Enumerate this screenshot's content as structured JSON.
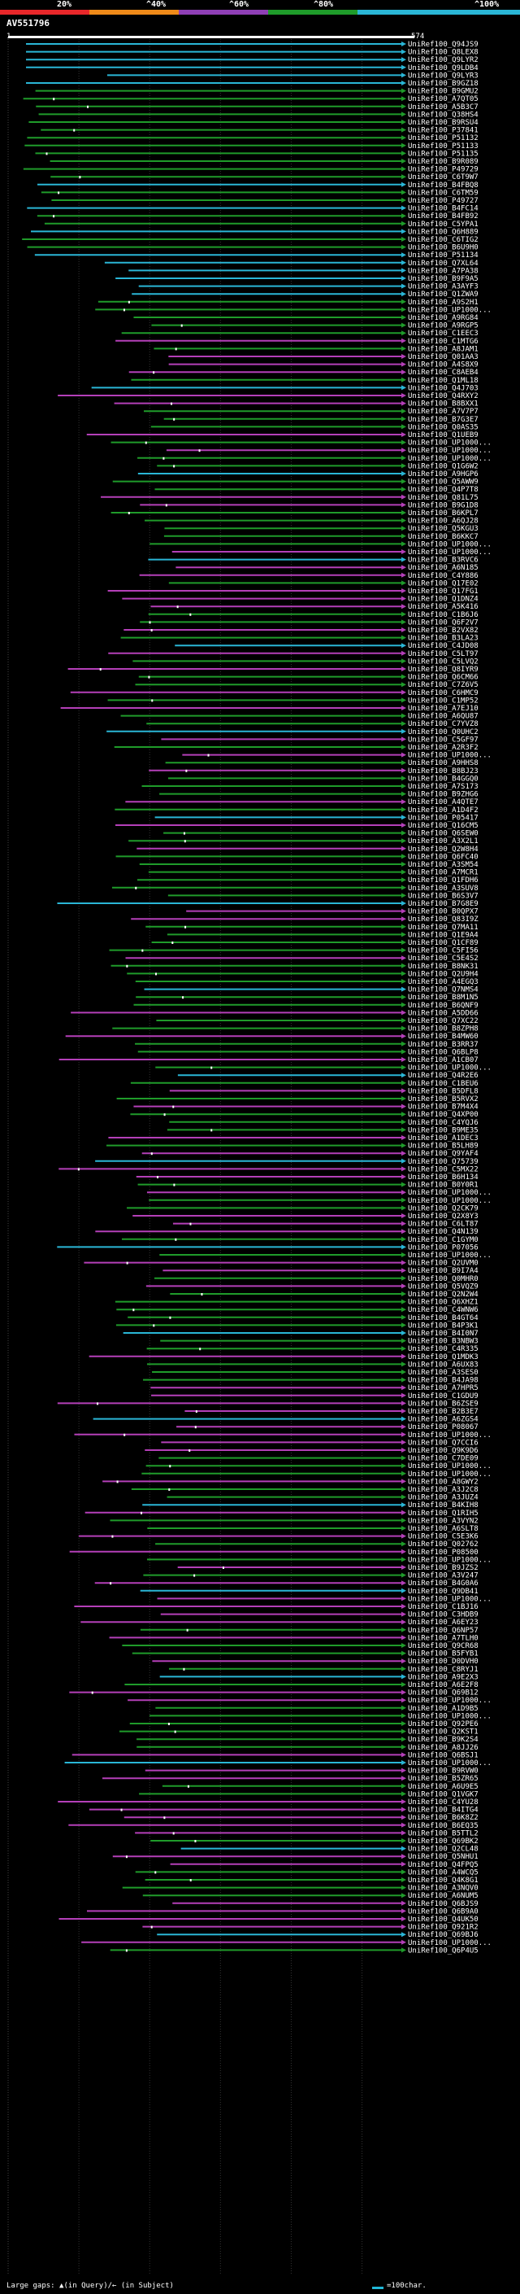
{
  "scale": {
    "labels": [
      "20%",
      "^40%",
      "^60%",
      "^80%",
      "^100%"
    ],
    "colors": [
      "#e8272a",
      "#ef8a19",
      "#8f3fb5",
      "#1f9b2a",
      "#2ab6d6"
    ]
  },
  "query": {
    "name": "AV551796",
    "start": "1",
    "end": "574"
  },
  "footer": "Large gaps: ▲(in Query)/← (in Subject)",
  "legend": "=100char.",
  "hits": [
    "UniRef100_Q94JS9",
    "UniRef100_Q8LEX8",
    "UniRef100_Q9LYR2",
    "UniRef100_Q9LDB4",
    "UniRef100_Q9LYR3",
    "UniRef100_B9GZ18",
    "UniRef100_B9GMU2",
    "UniRef100_A7QT05",
    "UniRef100_A5B3C7",
    "UniRef100_Q38HS4",
    "UniRef100_B9RSU4",
    "UniRef100_P37841",
    "UniRef100_P51132",
    "UniRef100_P51133",
    "UniRef100_P51135",
    "UniRef100_B9R089",
    "UniRef100_P49729",
    "UniRef100_C6T9W7",
    "UniRef100_B4FBQ8",
    "UniRef100_C6TM59",
    "UniRef100_P49727",
    "UniRef100_B4FC14",
    "UniRef100_B4FB92",
    "UniRef100_C5YPA1",
    "UniRef100_Q6H889",
    "UniRef100_C6TIG2",
    "UniRef100_B6U9H0",
    "UniRef100_P51134",
    "UniRef100_Q7XL64",
    "UniRef100_A7PA38",
    "UniRef100_B9F9A5",
    "UniRef100_A3AYF3",
    "UniRef100_Q1ZWA9",
    "UniRef100_A9S2H1",
    "UniRef100_UP1000...",
    "UniRef100_A9RG84",
    "UniRef100_A9RGP5",
    "UniRef100_C1EEC3",
    "UniRef100_C1MTG6",
    "UniRef100_A8JAM1",
    "UniRef100_Q01AA3",
    "UniRef100_A4S8X9",
    "UniRef100_C8AEB4",
    "UniRef100_Q1ML18",
    "UniRef100_Q4J703",
    "UniRef100_Q4RXY2",
    "UniRef100_B8BXX1",
    "UniRef100_A7V7P7",
    "UniRef100_B7G3E7",
    "UniRef100_Q0AS35",
    "UniRef100_Q1UEB9",
    "UniRef100_UP1000...",
    "UniRef100_UP1000...",
    "UniRef100_UP1000...",
    "UniRef100_Q1G6W2",
    "UniRef100_A9HGP6",
    "UniRef100_Q5AWW9",
    "UniRef100_Q4P7T8",
    "UniRef100_Q81L75",
    "UniRef100_B9G1D8",
    "UniRef100_B6KPL7",
    "UniRef100_A6QJ28",
    "UniRef100_Q5KGU3",
    "UniRef100_B6KKC7",
    "UniRef100_UP1000...",
    "UniRef100_UP1000...",
    "UniRef100_B3RVC6",
    "UniRef100_A6N185",
    "UniRef100_C4Y886",
    "UniRef100_Q17E02",
    "UniRef100_Q17FG1",
    "UniRef100_Q1DNZ4",
    "UniRef100_A5K416",
    "UniRef100_C1B6J6",
    "UniRef100_Q6F2V7",
    "UniRef100_B2VX82",
    "UniRef100_B3LA23",
    "UniRef100_C4JD08",
    "UniRef100_C5LT97",
    "UniRef100_C5LVQ2",
    "UniRef100_Q8IYR9",
    "UniRef100_Q6CM66",
    "UniRef100_C7Z6V5",
    "UniRef100_C6HMC9",
    "UniRef100_C1MP52",
    "UniRef100_A7EJ10",
    "UniRef100_A6QU87",
    "UniRef100_C7YVZ8",
    "UniRef100_Q0UHC2",
    "UniRef100_C5GF97",
    "UniRef100_A2R3F2",
    "UniRef100_UP1000...",
    "UniRef100_A9HHS8",
    "UniRef100_B8BJ23",
    "UniRef100_B4GGQ0",
    "UniRef100_A7S173",
    "UniRef100_B9ZHG6",
    "UniRef100_A4QTE7",
    "UniRef100_A1D4F2",
    "UniRef100_P05417",
    "UniRef100_Q16CM5",
    "UniRef100_Q6SEW0",
    "UniRef100_A3X2L1",
    "UniRef100_Q2W8H4",
    "UniRef100_Q6FC40",
    "UniRef100_A3SM54",
    "UniRef100_A7MCR1",
    "UniRef100_Q1FDH6",
    "UniRef100_A3SUV8",
    "UniRef100_B6S3V7",
    "UniRef100_B7G8E9",
    "UniRef100_B0QPX7",
    "UniRef100_Q83I9Z",
    "UniRef100_Q7MA11",
    "UniRef100_Q1E9A4",
    "UniRef100_Q1CF89",
    "UniRef100_C5FI56",
    "UniRef100_C5E4S2",
    "UniRef100_B8NK31",
    "UniRef100_Q2U9H4",
    "UniRef100_A4EGQ3",
    "UniRef100_Q7NMS4",
    "UniRef100_B8M1N5",
    "UniRef100_B6QNF9",
    "UniRef100_A5DD66",
    "UniRef100_Q7XC22",
    "UniRef100_B8ZPH8",
    "UniRef100_B4MW60",
    "UniRef100_B3RR37",
    "UniRef100_Q6BLP8",
    "UniRef100_A1CB07",
    "UniRef100_UP1000...",
    "UniRef100_Q4R2E6",
    "UniRef100_C1BEU6",
    "UniRef100_B5DFL8",
    "UniRef100_B5RVX2",
    "UniRef100_B7M4X4",
    "UniRef100_Q4XP00",
    "UniRef100_C4YQJ6",
    "UniRef100_B9ME35",
    "UniRef100_A1DEC3",
    "UniRef100_B5LH89",
    "UniRef100_Q9YAF4",
    "UniRef100_Q75739",
    "UniRef100_C5MX22",
    "UniRef100_B6H134",
    "UniRef100_B0Y0R1",
    "UniRef100_UP1000...",
    "UniRef100_UP1000...",
    "UniRef100_Q2CK79",
    "UniRef100_Q2X8Y3",
    "UniRef100_C6LT87",
    "UniRef100_Q4N139",
    "UniRef100_C1GYM0",
    "UniRef100_P07056",
    "UniRef100_UP1000...",
    "UniRef100_Q2UVM0",
    "UniRef100_B9I7A4",
    "UniRef100_Q0MHR0",
    "UniRef100_Q5VQZ9",
    "UniRef100_Q2N2W4",
    "UniRef100_Q6XHZ1",
    "UniRef100_C4WNW6",
    "UniRef100_B4GT64",
    "UniRef100_B4P3K1",
    "UniRef100_B4I0N7",
    "UniRef100_B3NBW3",
    "UniRef100_C4R335",
    "UniRef100_Q1MDK3",
    "UniRef100_A6UX83",
    "UniRef100_A3SES0",
    "UniRef100_B4JA98",
    "UniRef100_A7HPR5",
    "UniRef100_C1GDU9",
    "UniRef100_B6ZSE9",
    "UniRef100_B2B3E7",
    "UniRef100_A6ZGS4",
    "UniRef100_P08067",
    "UniRef100_UP1000...",
    "UniRef100_Q7CCI6",
    "UniRef100_Q9K9D6",
    "UniRef100_C7DE09",
    "UniRef100_UP1000...",
    "UniRef100_UP1000...",
    "UniRef100_A8GWY2",
    "UniRef100_A3J2C8",
    "UniRef100_A3JUZ4",
    "UniRef100_B4KIH8",
    "UniRef100_Q1RIH5",
    "UniRef100_A3VYN2",
    "UniRef100_A6SLT8",
    "UniRef100_C5E3K6",
    "UniRef100_Q02762",
    "UniRef100_P08500",
    "UniRef100_UP1000...",
    "UniRef100_B9JZS2",
    "UniRef100_A3V247",
    "UniRef100_B4G0A6",
    "UniRef100_Q9DB41",
    "UniRef100_UP1000...",
    "UniRef100_C1BJ16",
    "UniRef100_C3HDB9",
    "UniRef100_A6EY23",
    "UniRef100_Q6NP57",
    "UniRef100_A7TLH0",
    "UniRef100_Q9CR68",
    "UniRef100_B5FYB1",
    "UniRef100_D0DVH0",
    "UniRef100_C8RYJ1",
    "UniRef100_A9E2X3",
    "UniRef100_A6E2F8",
    "UniRef100_Q69B12",
    "UniRef100_UP1000...",
    "UniRef100_A1D9B5",
    "UniRef100_UP1000...",
    "UniRef100_Q92PE6",
    "UniRef100_Q2KST1",
    "UniRef100_B9K2S4",
    "UniRef100_A8JJ26",
    "UniRef100_Q6BSJ1",
    "UniRef100_UP1000...",
    "UniRef100_B9RVW0",
    "UniRef100_B5ZR65",
    "UniRef100_A6U9E5",
    "UniRef100_Q1VGK7",
    "UniRef100_C4YU28",
    "UniRef100_B4ITG4",
    "UniRef100_B6K8Z2",
    "UniRef100_B6EQ35",
    "UniRef100_B5TTL2",
    "UniRef100_Q69BK2",
    "UniRef100_Q2CL48",
    "UniRef100_Q5NHU1",
    "UniRef100_Q4FPQ5",
    "UniRef100_A4WCQ5",
    "UniRef100_Q4K8G1",
    "UniRef100_A3NQV0",
    "UniRef100_A6NUM5",
    "UniRef100_Q6BJS9",
    "UniRef100_Q6B9A0",
    "UniRef100_Q4UK50",
    "UniRef100_Q921R2",
    "UniRef100_Q69BJ6",
    "UniRef100_UP1000...",
    "UniRef100_Q6P4U5"
  ]
}
